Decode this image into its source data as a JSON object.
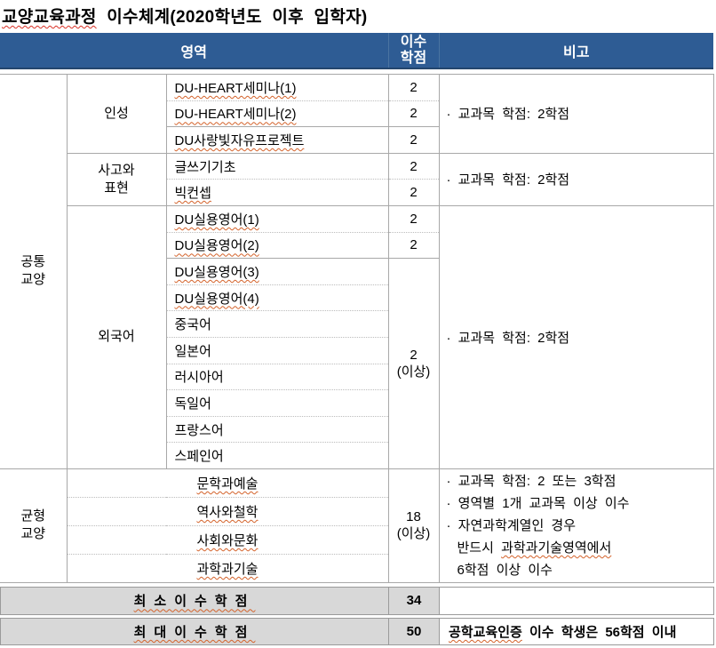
{
  "title": {
    "highlight": "교양교육과정",
    "rest": " 이수체계(2020학년도 이후 입학자)"
  },
  "header": {
    "area": "영역",
    "credits_1": "이수",
    "credits_2": "학점",
    "note": "비고"
  },
  "sections": {
    "common": {
      "group_1": "공통",
      "group_2": "교양",
      "personality": {
        "label": "인성",
        "note": "· 교과목 학점: 2학점",
        "c1": {
          "name": "DU-HEART세미나(1)",
          "credit": "2"
        },
        "c2": {
          "name": "DU-HEART세미나(2)",
          "credit": "2"
        },
        "c3": {
          "name": "DU사랑빛자유프로젝트",
          "credit": "2"
        }
      },
      "thinking": {
        "label_1": "사고와",
        "label_2": "표현",
        "note": "· 교과목 학점: 2학점",
        "c1": {
          "name": "글쓰기기초",
          "credit": "2"
        },
        "c2": {
          "name": "빅컨셉",
          "credit": "2"
        }
      },
      "foreign": {
        "label": "외국어",
        "note": "· 교과목 학점: 2학점",
        "c1": {
          "name": "DU실용영어(1)",
          "credit": "2"
        },
        "c2": {
          "name": "DU실용영어(2)",
          "credit": "2"
        },
        "c3": "DU실용영어(3)",
        "c4": "DU실용영어(4)",
        "c5": "중국어",
        "c6": "일본어",
        "c7": "러시아어",
        "c8": "독일어",
        "c9": "프랑스어",
        "c10": "스페인어",
        "merged_credit_1": "2",
        "merged_credit_2": "(이상)"
      }
    },
    "balanced": {
      "group_1": "균형",
      "group_2": "교양",
      "areas": [
        "문학과예술",
        "역사와철학",
        "사회와문화",
        "과학과기술"
      ],
      "credit_1": "18",
      "credit_2": "(이상)",
      "note": {
        "l1": "· 교과목 학점: 2 또는 3학점",
        "l2": "· 영역별 1개 교과목 이상 이수",
        "l3": "· 자연과학계열인 경우",
        "l4_plain": "반드시 ",
        "l4_sq": "과학과기술영역에서",
        "l5": "6학점 이상 이수"
      }
    }
  },
  "summary": {
    "min_label": "최소이수학점",
    "min_value": "34",
    "max_label": "최대이수학점",
    "max_value": "50",
    "max_note_sq": "공학교육인증",
    "max_note_rest": " 이수 학생은 56학점 이내"
  },
  "colors": {
    "header_bg": "#2E5C94",
    "header_border": "#24466E",
    "header_text": "#FFFFFF",
    "summary_bg": "#D8D8D8",
    "line": "#A8A8A8",
    "squiggle": "#D4622A",
    "title_squiggle": "#D93025"
  }
}
